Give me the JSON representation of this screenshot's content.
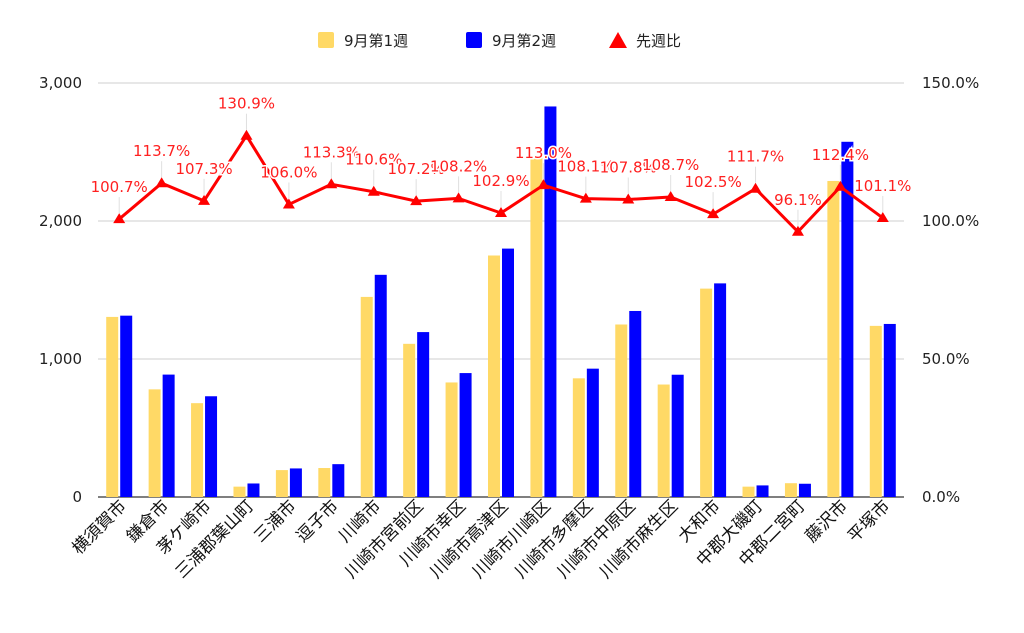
{
  "chart_data": {
    "type": "bar",
    "categories": [
      "横須賀市",
      "鎌倉市",
      "茅ケ崎市",
      "三浦郡葉山町",
      "三浦市",
      "逗子市",
      "川崎市",
      "川崎市宮前区",
      "川崎市幸区",
      "川崎市高津区",
      "川崎市川崎区",
      "川崎市多摩区",
      "川崎市中原区",
      "川崎市麻生区",
      "大和市",
      "中郡大磯町",
      "中郡二宮町",
      "藤沢市",
      "平塚市"
    ],
    "series": [
      {
        "name": "9月第1週",
        "type": "bar",
        "axis": "left",
        "color": "#ffd966",
        "values": [
          1305,
          780,
          680,
          75,
          195,
          210,
          1450,
          1110,
          830,
          1750,
          2470,
          860,
          1250,
          815,
          1510,
          75,
          100,
          2290,
          1240
        ]
      },
      {
        "name": "9月第2週",
        "type": "bar",
        "axis": "left",
        "color": "#0000ff",
        "values": [
          1314,
          887,
          730,
          98,
          207,
          238,
          1610,
          1195,
          898,
          1800,
          2830,
          930,
          1348,
          886,
          1548,
          84,
          96,
          2574,
          1254
        ]
      },
      {
        "name": "先週比",
        "type": "line",
        "axis": "right",
        "color": "#ff0000",
        "values": [
          100.7,
          113.7,
          107.3,
          130.9,
          106.0,
          113.3,
          110.6,
          107.2,
          108.2,
          102.9,
          113.0,
          108.1,
          107.8,
          108.7,
          102.5,
          111.7,
          96.1,
          112.4,
          101.1
        ],
        "labels": [
          "100.7%",
          "113.7%",
          "107.3%",
          "130.9%",
          "106.0%",
          "113.3%",
          "110.6%",
          "107.2%",
          "108.2%",
          "102.9%",
          "113.0%",
          "108.1%",
          "107.8%",
          "108.7%",
          "102.5%",
          "111.7%",
          "96.1%",
          "112.4%",
          "101.1%"
        ]
      }
    ],
    "y_left": {
      "min": 0,
      "max": 3000,
      "ticks": [
        "0",
        "1,000",
        "2,000",
        "3,000"
      ]
    },
    "y_right": {
      "min": 0,
      "max": 150,
      "ticks": [
        "0.0%",
        "50.0%",
        "100.0%",
        "150.0%"
      ]
    },
    "grid": true,
    "legend_position": "top"
  }
}
